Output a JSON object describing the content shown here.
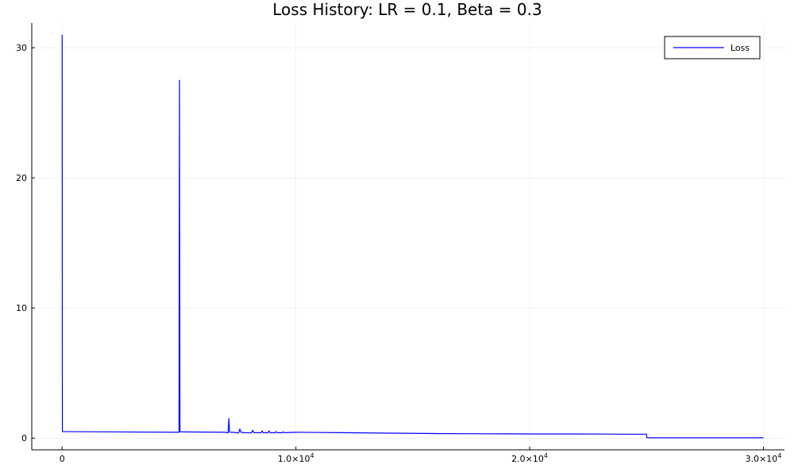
{
  "chart_data": {
    "type": "line",
    "title": "Loss History: LR = 0.1, Beta = 0.3",
    "xlabel": "",
    "ylabel": "",
    "xlim": [
      -1300,
      30900
    ],
    "ylim": [
      -0.9,
      31.9
    ],
    "x_ticks": [
      {
        "value": 0,
        "label": "0",
        "sup": ""
      },
      {
        "value": 10000,
        "label": "1.0×10",
        "sup": "4"
      },
      {
        "value": 20000,
        "label": "2.0×10",
        "sup": "4"
      },
      {
        "value": 30000,
        "label": "3.0×10",
        "sup": "4"
      }
    ],
    "y_ticks": [
      {
        "value": 0,
        "label": "0"
      },
      {
        "value": 10,
        "label": "10"
      },
      {
        "value": 20,
        "label": "20"
      },
      {
        "value": 30,
        "label": "30"
      }
    ],
    "grid": true,
    "legend_position": "top-right",
    "series": [
      {
        "name": "Loss",
        "color": "#0000ff",
        "x": [
          0,
          10,
          30,
          60,
          5000,
          5020,
          5040,
          5060,
          5080,
          5100,
          7000,
          7100,
          7130,
          7160,
          7200,
          7300,
          7550,
          7600,
          7650,
          7800,
          8100,
          8150,
          8200,
          8400,
          8500,
          8550,
          8600,
          8700,
          8800,
          8850,
          8900,
          9000,
          9100,
          9150,
          9200,
          9300,
          9400,
          9450,
          9500,
          10000,
          12000,
          14000,
          16000,
          18000,
          20000,
          22000,
          24000,
          25000,
          25010,
          25050,
          26000,
          28000,
          30000
        ],
        "y": [
          31.0,
          0.5,
          0.5,
          0.5,
          0.45,
          27.5,
          0.5,
          0.48,
          0.48,
          0.48,
          0.45,
          0.4,
          1.5,
          0.5,
          0.45,
          0.45,
          0.4,
          0.7,
          0.45,
          0.42,
          0.4,
          0.6,
          0.42,
          0.42,
          0.4,
          0.55,
          0.42,
          0.42,
          0.4,
          0.55,
          0.42,
          0.42,
          0.4,
          0.5,
          0.42,
          0.42,
          0.4,
          0.48,
          0.42,
          0.45,
          0.42,
          0.38,
          0.35,
          0.33,
          0.32,
          0.32,
          0.3,
          0.3,
          0.05,
          0.02,
          0.02,
          0.02,
          0.02
        ]
      }
    ]
  }
}
